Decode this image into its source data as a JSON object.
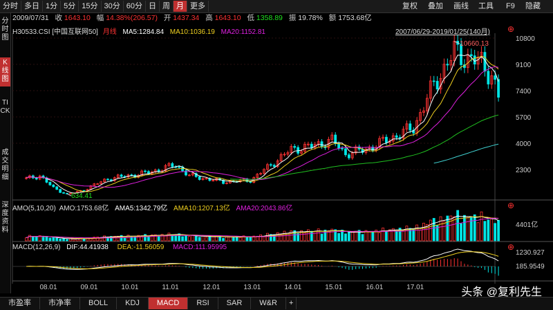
{
  "toolbar": {
    "periods": [
      "分时",
      "多日",
      "1分",
      "5分",
      "15分",
      "30分",
      "60分",
      "日",
      "周",
      "月",
      "更多"
    ],
    "active_period": "月",
    "right": [
      "复权",
      "叠加",
      "画线",
      "工具",
      "F9",
      "隐藏"
    ]
  },
  "sidebar": {
    "items": [
      "分时图",
      "K线图",
      "TICK",
      "成交明细",
      "深度资料"
    ],
    "active": "K线图"
  },
  "info": {
    "date": "2009/07/31",
    "close_label": "收",
    "close": "1643.10",
    "amp_label": "幅",
    "amp": "14.38%(206.57)",
    "open_label": "开",
    "open": "1437.34",
    "high_label": "高",
    "high": "1643.10",
    "low_label": "低",
    "low": "1358.89",
    "swing_label": "振",
    "swing": "19.78%",
    "amount_label": "额",
    "amount": "1753.68亿"
  },
  "kline": {
    "code": "H30533.CSI",
    "name": "[中国互联网50]",
    "period": "月线",
    "ma5": "MA5:1284.84",
    "ma10": "MA10:1036.19",
    "ma20": "MA20:1152.81",
    "range": "2007/06/29-2019/01/25(140月)",
    "yticks": [
      "10800",
      "9100",
      "7400",
      "5700",
      "4000",
      "2300"
    ],
    "hi_mark": "10660.13",
    "lo_mark": "634.41"
  },
  "amo": {
    "title": "AMO(5,10,20)",
    "value": "AMO:1753.68亿",
    "ma5": "AMA5:1342.79亿",
    "ma10": "AMA10:1207.13亿",
    "ma20": "AMA20:2043.86亿",
    "ytick": "4401亿"
  },
  "macd": {
    "title": "MACD(12,26,9)",
    "dif": "DIF:44.41938",
    "dea": "DEA:-11.56059",
    "macd": "MACD:111.95995",
    "yticks": [
      "1230.927",
      "185.9549"
    ]
  },
  "xaxis": [
    "08.01",
    "09.01",
    "10.01",
    "11.01",
    "12.01",
    "13.01",
    "14.01",
    "15.01",
    "16.01",
    "17.01"
  ],
  "bottom": {
    "tabs": [
      "市盈率",
      "市净率",
      "BOLL",
      "KDJ",
      "MACD",
      "RSI",
      "SAR",
      "W&R",
      "+"
    ],
    "active": "MACD"
  },
  "watermark": "头条 @复利先生",
  "colors": {
    "up": "#ff3232",
    "down": "#00e5e5",
    "ma5": "#ffffff",
    "ma10": "#f0d020",
    "ma20": "#e020e0",
    "ma_long1": "#20c020",
    "ma_long2": "#40d0d0",
    "accent": "#c03030"
  }
}
